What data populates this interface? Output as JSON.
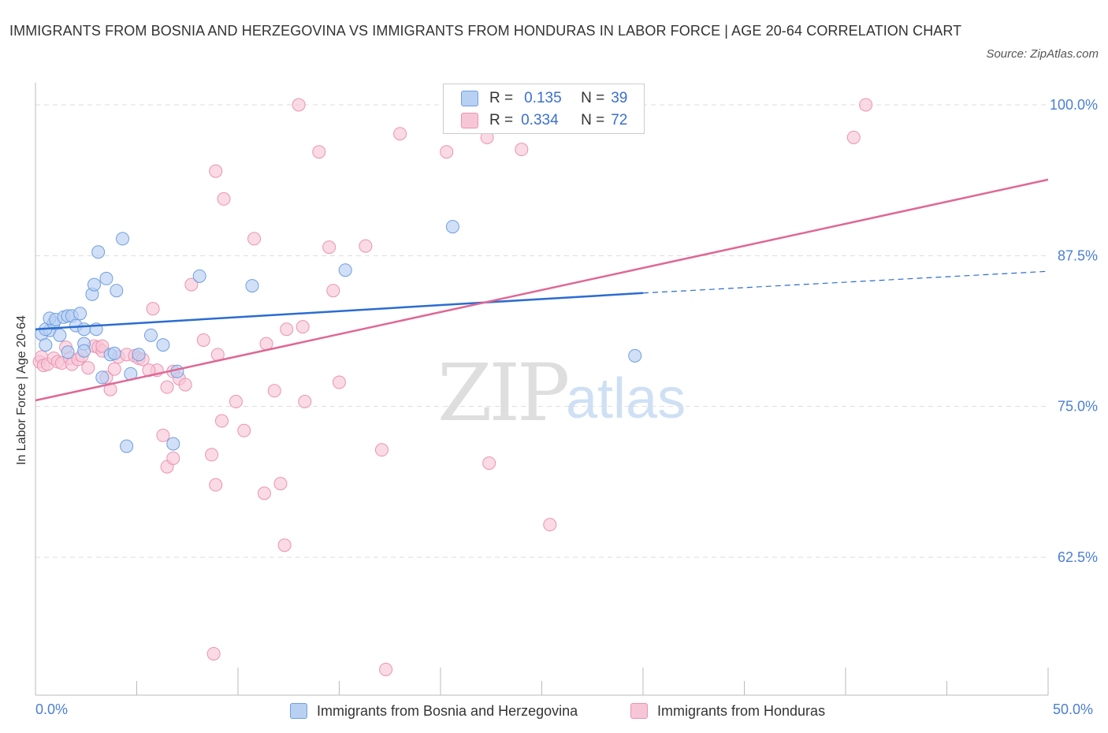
{
  "header": {
    "title": "IMMIGRANTS FROM BOSNIA AND HERZEGOVINA VS IMMIGRANTS FROM HONDURAS IN LABOR FORCE | AGE 20-64 CORRELATION CHART",
    "source": "Source: ZipAtlas.com"
  },
  "watermark": {
    "zip": "ZIP",
    "atlas": "atlas"
  },
  "legend": {
    "row1": {
      "r_label": "R =",
      "r_value": "0.135",
      "n_label": "N =",
      "n_value": "39"
    },
    "row2": {
      "r_label": "R =",
      "r_value": "0.334",
      "n_label": "N =",
      "n_value": "72"
    }
  },
  "bottom_legend": {
    "series1": "Immigrants from Bosnia and Herzegovina",
    "series2": "Immigrants from Honduras"
  },
  "colors": {
    "blue_fill": "#b8d0f2",
    "blue_stroke": "#6f9ee0",
    "blue_line": "#2b6cd0",
    "pink_fill": "#f7c6d6",
    "pink_stroke": "#eb93b3",
    "pink_line": "#e06794",
    "tick_text": "#4a7fd4",
    "grid": "#dddddd"
  },
  "chart_data": {
    "type": "scatter",
    "title": "IMMIGRANTS FROM BOSNIA AND HERZEGOVINA VS IMMIGRANTS FROM HONDURAS IN LABOR FORCE | AGE 20-64 CORRELATION CHART",
    "xlabel": "",
    "ylabel": "In Labor Force | Age 20-64",
    "xlim": [
      0,
      50
    ],
    "ylim": [
      51.5,
      100.5
    ],
    "x_tick_labels": [
      "0.0%",
      "50.0%"
    ],
    "y_ticks": [
      100,
      87.5,
      75,
      62.5
    ],
    "y_tick_labels": [
      "100.0%",
      "87.5%",
      "75.0%",
      "62.5%"
    ],
    "grid": true,
    "legend": "top-center",
    "series": [
      {
        "name": "Immigrants from Bosnia and Herzegovina",
        "R": 0.135,
        "N": 39,
        "trend": {
          "x0": 0,
          "y0": 81.4,
          "x1": 30,
          "y1": 84.4,
          "dashed_to_x": 50,
          "dashed_to_y": 86.2
        },
        "points": [
          [
            0.3,
            81.0
          ],
          [
            0.5,
            80.1
          ],
          [
            0.7,
            81.3
          ],
          [
            0.5,
            81.4
          ],
          [
            0.9,
            81.9
          ],
          [
            0.7,
            82.3
          ],
          [
            1.0,
            82.2
          ],
          [
            1.2,
            80.9
          ],
          [
            1.4,
            82.4
          ],
          [
            1.6,
            82.5
          ],
          [
            1.8,
            82.5
          ],
          [
            2.0,
            81.7
          ],
          [
            2.2,
            82.7
          ],
          [
            2.4,
            81.4
          ],
          [
            2.4,
            80.2
          ],
          [
            2.4,
            79.6
          ],
          [
            2.8,
            84.3
          ],
          [
            2.9,
            85.1
          ],
          [
            3.0,
            81.4
          ],
          [
            3.1,
            87.8
          ],
          [
            3.3,
            77.4
          ],
          [
            3.5,
            85.6
          ],
          [
            3.7,
            79.3
          ],
          [
            3.9,
            79.4
          ],
          [
            4.0,
            84.6
          ],
          [
            4.3,
            88.9
          ],
          [
            4.5,
            71.7
          ],
          [
            4.7,
            77.7
          ],
          [
            5.1,
            79.3
          ],
          [
            5.7,
            80.9
          ],
          [
            6.3,
            80.1
          ],
          [
            6.8,
            71.9
          ],
          [
            7.0,
            77.9
          ],
          [
            8.1,
            85.8
          ],
          [
            10.7,
            85.0
          ],
          [
            15.3,
            86.3
          ],
          [
            20.6,
            89.9
          ],
          [
            29.6,
            79.2
          ],
          [
            1.6,
            79.5
          ]
        ]
      },
      {
        "name": "Immigrants from Honduras",
        "R": 0.334,
        "N": 72,
        "trend": {
          "x0": 0,
          "y0": 75.5,
          "x1": 50,
          "y1": 93.8
        },
        "points": [
          [
            0.2,
            78.7
          ],
          [
            0.3,
            79.1
          ],
          [
            0.4,
            78.4
          ],
          [
            0.6,
            78.5
          ],
          [
            0.9,
            79.0
          ],
          [
            1.1,
            78.7
          ],
          [
            1.3,
            78.6
          ],
          [
            1.5,
            79.9
          ],
          [
            1.7,
            79.0
          ],
          [
            1.8,
            78.5
          ],
          [
            2.1,
            78.9
          ],
          [
            2.3,
            79.2
          ],
          [
            2.6,
            78.2
          ],
          [
            2.9,
            80.0
          ],
          [
            3.1,
            79.9
          ],
          [
            3.3,
            79.6
          ],
          [
            3.5,
            77.4
          ],
          [
            3.7,
            76.4
          ],
          [
            3.9,
            78.1
          ],
          [
            4.1,
            79.1
          ],
          [
            4.5,
            79.3
          ],
          [
            4.9,
            79.2
          ],
          [
            5.1,
            79.0
          ],
          [
            5.3,
            78.9
          ],
          [
            5.8,
            83.1
          ],
          [
            6.0,
            78.0
          ],
          [
            6.5,
            76.6
          ],
          [
            6.8,
            77.9
          ],
          [
            7.1,
            77.3
          ],
          [
            7.4,
            76.8
          ],
          [
            7.7,
            85.1
          ],
          [
            8.3,
            80.5
          ],
          [
            8.7,
            71.0
          ],
          [
            8.9,
            94.5
          ],
          [
            9.0,
            79.3
          ],
          [
            9.3,
            92.2
          ],
          [
            9.9,
            75.4
          ],
          [
            10.3,
            73.0
          ],
          [
            10.8,
            88.9
          ],
          [
            11.3,
            67.8
          ],
          [
            11.4,
            80.2
          ],
          [
            11.8,
            76.3
          ],
          [
            12.1,
            68.6
          ],
          [
            12.3,
            63.5
          ],
          [
            12.4,
            81.4
          ],
          [
            13.0,
            100.0
          ],
          [
            13.2,
            81.6
          ],
          [
            13.3,
            75.4
          ],
          [
            14.0,
            96.1
          ],
          [
            14.5,
            88.2
          ],
          [
            14.7,
            84.6
          ],
          [
            15.0,
            77.0
          ],
          [
            16.3,
            88.3
          ],
          [
            17.1,
            71.4
          ],
          [
            17.3,
            53.2
          ],
          [
            18.0,
            97.6
          ],
          [
            20.3,
            96.1
          ],
          [
            22.3,
            97.3
          ],
          [
            22.4,
            70.3
          ],
          [
            25.4,
            65.2
          ],
          [
            24.0,
            96.3
          ],
          [
            26.5,
            100.0
          ],
          [
            40.4,
            97.3
          ],
          [
            41.0,
            100.0
          ],
          [
            6.3,
            72.6
          ],
          [
            6.5,
            70.0
          ],
          [
            6.8,
            70.7
          ],
          [
            5.6,
            78.0
          ],
          [
            8.8,
            54.5
          ],
          [
            8.9,
            68.5
          ],
          [
            9.2,
            73.8
          ],
          [
            3.3,
            80.0
          ]
        ]
      }
    ]
  }
}
